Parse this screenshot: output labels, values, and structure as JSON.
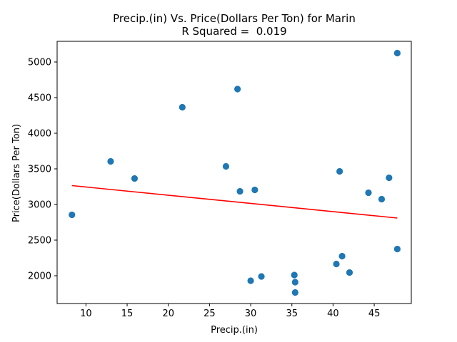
{
  "chart_data": {
    "type": "scatter",
    "title_line1": "Precip.(in) Vs. Price(Dollars Per Ton) for Marin",
    "title_line2": "R Squared =  0.019",
    "xlabel": "Precip.(in)",
    "ylabel": "Price(Dollars Per Ton)",
    "xlim": [
      6.5,
      49.5
    ],
    "ylim": [
      1610,
      5290
    ],
    "x_ticks": [
      10,
      15,
      20,
      25,
      30,
      35,
      40,
      45
    ],
    "y_ticks": [
      2000,
      2500,
      3000,
      3500,
      4000,
      4500,
      5000
    ],
    "point_color": "#1f77b4",
    "fit_color": "#ff0000",
    "grid": false,
    "legend": "none",
    "points": [
      {
        "x": 8.3,
        "y": 2855
      },
      {
        "x": 13.0,
        "y": 3605
      },
      {
        "x": 15.9,
        "y": 3365
      },
      {
        "x": 21.7,
        "y": 4365
      },
      {
        "x": 27.0,
        "y": 3535
      },
      {
        "x": 28.4,
        "y": 4620
      },
      {
        "x": 28.7,
        "y": 3185
      },
      {
        "x": 30.0,
        "y": 1930
      },
      {
        "x": 30.5,
        "y": 3205
      },
      {
        "x": 31.3,
        "y": 1990
      },
      {
        "x": 35.3,
        "y": 2010
      },
      {
        "x": 35.4,
        "y": 1910
      },
      {
        "x": 35.4,
        "y": 1765
      },
      {
        "x": 40.4,
        "y": 2165
      },
      {
        "x": 40.8,
        "y": 3465
      },
      {
        "x": 41.1,
        "y": 2275
      },
      {
        "x": 42.0,
        "y": 2045
      },
      {
        "x": 44.3,
        "y": 3165
      },
      {
        "x": 45.9,
        "y": 3075
      },
      {
        "x": 46.8,
        "y": 3375
      },
      {
        "x": 47.8,
        "y": 5125
      },
      {
        "x": 47.8,
        "y": 2375
      }
    ],
    "fit_line": {
      "x": [
        8.3,
        47.8
      ],
      "y": [
        3265,
        2810
      ]
    }
  }
}
